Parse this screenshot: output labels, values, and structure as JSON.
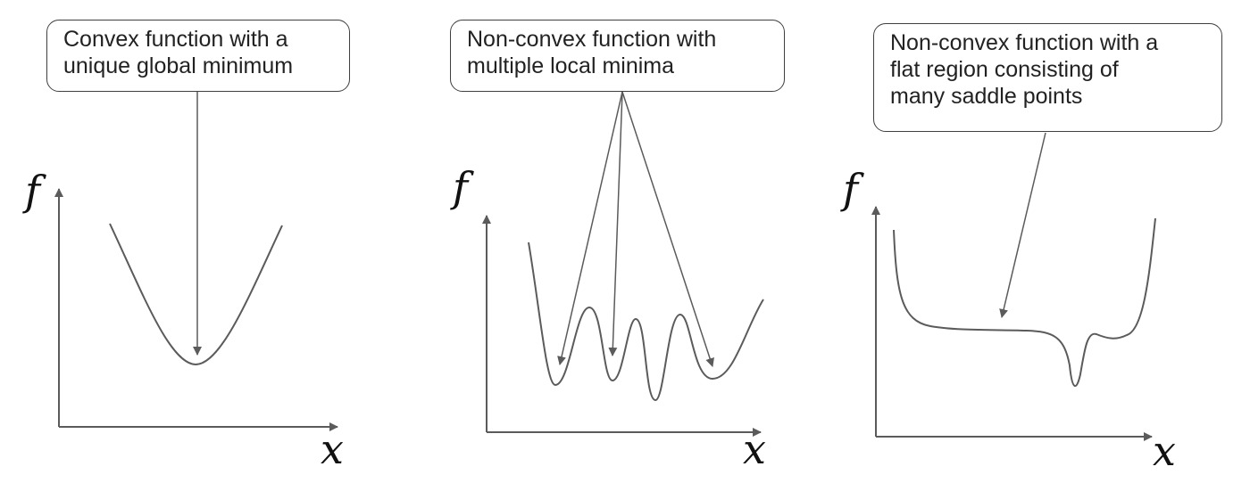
{
  "colors": {
    "curve": "#5b5b5b",
    "axis": "#5b5b5b",
    "arrow": "#5b5b5b",
    "box_border": "#3f3f3f",
    "text": "#222222",
    "background": "#ffffff"
  },
  "panels": [
    {
      "callout_lines": [
        "Convex function with a",
        "unique global minimum"
      ],
      "y_label": "f",
      "x_label": "x"
    },
    {
      "callout_lines": [
        "Non-convex function with",
        "multiple local minima"
      ],
      "y_label": "f",
      "x_label": "x"
    },
    {
      "callout_lines": [
        "Non-convex function with a",
        "flat region consisting of",
        "many saddle points"
      ],
      "y_label": "f",
      "x_label": "x"
    }
  ]
}
